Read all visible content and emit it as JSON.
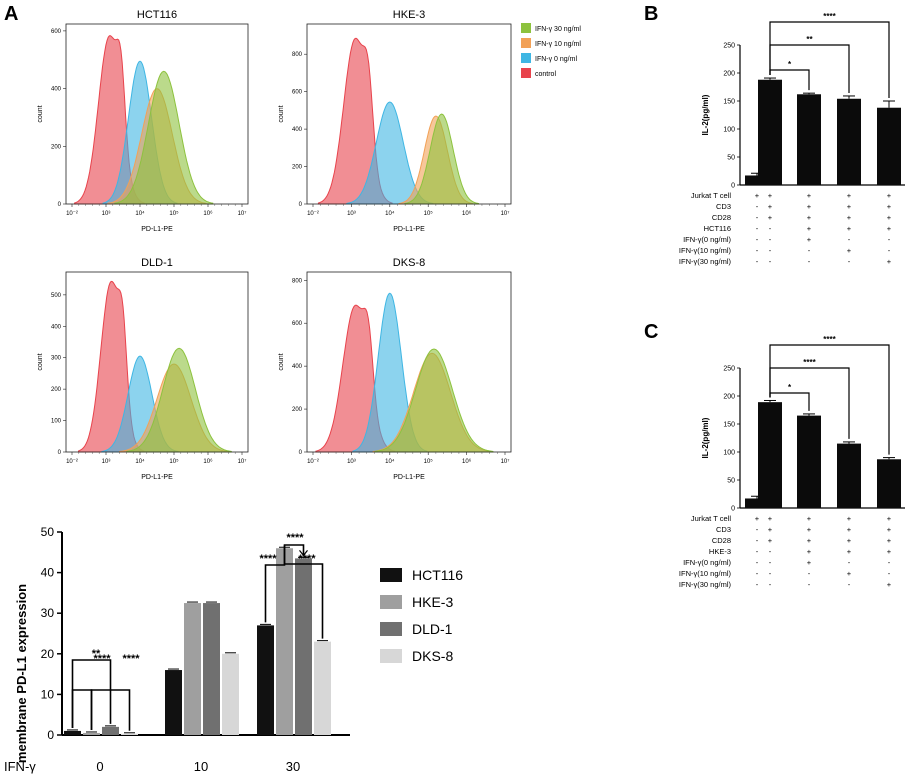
{
  "panel_letters": {
    "a": "A",
    "b": "B",
    "c": "C"
  },
  "colors": {
    "control": "#e8434c",
    "ifn0": "#3fb6e3",
    "ifn10": "#f2a157",
    "ifn30": "#8dc23e",
    "bar_black": "#0b0b0b",
    "hct116": "#111111",
    "hke3": "#9f9f9f",
    "dld1": "#707070",
    "dks8": "#d7d7d7"
  },
  "histogram_legend": [
    {
      "label": "IFN-γ 30 ng/ml",
      "color": "#8dc23e"
    },
    {
      "label": "IFN-γ 10 ng/ml",
      "color": "#f2a157"
    },
    {
      "label": "IFN-γ 0 ng/ml",
      "color": "#3fb6e3"
    },
    {
      "label": "control",
      "color": "#e8434c"
    }
  ],
  "chart_data": [
    {
      "id": "histograms",
      "type": "area",
      "xlabel": "PD-L1-PE",
      "ylabel": "count",
      "x_ticks": [
        "10⁻²",
        "10³",
        "10⁴",
        "10⁵",
        "10⁶",
        "10⁷"
      ],
      "panels": [
        {
          "title": "HCT116",
          "y_ticks": [
            0,
            200,
            400,
            600
          ],
          "ylim": [
            0,
            610
          ],
          "series": [
            {
              "name": "control",
              "peak_decade": 1.1,
              "peak_count": 580,
              "width": 0.32
            },
            {
              "name": "IFN-γ 0 ng/ml",
              "peak_decade": 2.0,
              "peak_count": 495,
              "width": 0.34
            },
            {
              "name": "IFN-γ 10 ng/ml",
              "peak_decade": 2.5,
              "peak_count": 400,
              "width": 0.45
            },
            {
              "name": "IFN-γ 30 ng/ml",
              "peak_decade": 2.7,
              "peak_count": 460,
              "width": 0.45
            }
          ]
        },
        {
          "title": "HKE-3",
          "y_ticks": [
            0,
            200,
            400,
            600,
            800
          ],
          "ylim": [
            0,
            940
          ],
          "series": [
            {
              "name": "control",
              "peak_decade": 1.1,
              "peak_count": 880,
              "width": 0.3
            },
            {
              "name": "IFN-γ 0 ng/ml",
              "peak_decade": 2.0,
              "peak_count": 545,
              "width": 0.35
            },
            {
              "name": "IFN-γ 10 ng/ml",
              "peak_decade": 3.2,
              "peak_count": 470,
              "width": 0.3
            },
            {
              "name": "IFN-γ 30 ng/ml",
              "peak_decade": 3.35,
              "peak_count": 480,
              "width": 0.3
            }
          ]
        },
        {
          "title": "DLD-1",
          "y_ticks": [
            0,
            100,
            200,
            300,
            400,
            500
          ],
          "ylim": [
            0,
            560
          ],
          "series": [
            {
              "name": "control",
              "peak_decade": 1.15,
              "peak_count": 540,
              "width": 0.3
            },
            {
              "name": "IFN-γ 0 ng/ml",
              "peak_decade": 2.0,
              "peak_count": 305,
              "width": 0.35
            },
            {
              "name": "IFN-γ 10 ng/ml",
              "peak_decade": 3.0,
              "peak_count": 280,
              "width": 0.5
            },
            {
              "name": "IFN-γ 30 ng/ml",
              "peak_decade": 3.15,
              "peak_count": 330,
              "width": 0.48
            }
          ]
        },
        {
          "title": "DKS-8",
          "y_ticks": [
            0,
            200,
            400,
            600,
            800
          ],
          "ylim": [
            0,
            820
          ],
          "series": [
            {
              "name": "control",
              "peak_decade": 1.1,
              "peak_count": 680,
              "width": 0.32
            },
            {
              "name": "IFN-γ 0 ng/ml",
              "peak_decade": 2.0,
              "peak_count": 740,
              "width": 0.3
            },
            {
              "name": "IFN-γ 10 ng/ml",
              "peak_decade": 3.1,
              "peak_count": 460,
              "width": 0.48
            },
            {
              "name": "IFN-γ 30 ng/ml",
              "peak_decade": 3.15,
              "peak_count": 480,
              "width": 0.48
            }
          ]
        }
      ]
    },
    {
      "id": "membrane",
      "type": "bar",
      "ylabel": "membrane PD-L1 expression",
      "xlabel": "IFN-γ",
      "categories": [
        "0",
        "10",
        "30"
      ],
      "ylim": [
        0,
        50
      ],
      "y_ticks": [
        0,
        10,
        20,
        30,
        40,
        50
      ],
      "series": [
        {
          "name": "HCT116",
          "values": [
            1,
            16,
            27
          ]
        },
        {
          "name": "HKE-3",
          "values": [
            0.5,
            32.5,
            46
          ]
        },
        {
          "name": "DLD-1",
          "values": [
            2,
            32.5,
            43.5
          ]
        },
        {
          "name": "DKS-8",
          "values": [
            0.3,
            20,
            23
          ]
        }
      ],
      "significance": [
        {
          "group": 0,
          "from": 0,
          "to": 2,
          "label": "**"
        },
        {
          "group": 0,
          "from": 0,
          "to": 1,
          "label": "****"
        },
        {
          "group": 0,
          "from": 1,
          "to": 3,
          "label": "****"
        },
        {
          "group": 2,
          "from": 0,
          "to": 1,
          "label": "****"
        },
        {
          "group": 2,
          "from": 1,
          "to": 2,
          "label": "****"
        },
        {
          "group": 2,
          "from": 1,
          "to": 3,
          "label": "****"
        }
      ]
    },
    {
      "id": "B",
      "type": "bar",
      "ylabel": "IL-2(pg/ml)",
      "ylim": [
        0,
        250
      ],
      "y_ticks": [
        0,
        50,
        100,
        150,
        200,
        250
      ],
      "values": [
        17,
        188,
        162,
        154,
        138
      ],
      "errors": [
        4,
        3,
        2,
        5,
        12
      ],
      "significance": [
        {
          "from": 1,
          "to": 2,
          "label": "*"
        },
        {
          "from": 1,
          "to": 3,
          "label": "**"
        },
        {
          "from": 1,
          "to": 4,
          "label": "****"
        }
      ],
      "table": [
        {
          "label": "Jurkat T cell",
          "cells": [
            "+",
            "+",
            "+",
            "+",
            "+"
          ]
        },
        {
          "label": "CD3",
          "cells": [
            "-",
            "+",
            "+",
            "+",
            "+"
          ]
        },
        {
          "label": "CD28",
          "cells": [
            "-",
            "+",
            "+",
            "+",
            "+"
          ]
        },
        {
          "label": "HCT116",
          "cells": [
            "-",
            "-",
            "+",
            "+",
            "+"
          ]
        },
        {
          "label": "IFN-γ(0 ng/ml)",
          "cells": [
            "-",
            "-",
            "+",
            "-",
            "-"
          ]
        },
        {
          "label": "IFN-γ(10 ng/ml)",
          "cells": [
            "-",
            "-",
            "-",
            "+",
            "-"
          ]
        },
        {
          "label": "IFN-γ(30 ng/ml)",
          "cells": [
            "-",
            "-",
            "-",
            "-",
            "+"
          ]
        }
      ]
    },
    {
      "id": "C",
      "type": "bar",
      "ylabel": "IL-2(pg/ml)",
      "ylim": [
        0,
        250
      ],
      "y_ticks": [
        0,
        50,
        100,
        150,
        200,
        250
      ],
      "values": [
        17,
        189,
        165,
        115,
        87
      ],
      "errors": [
        4,
        3,
        3,
        3,
        3
      ],
      "significance": [
        {
          "from": 1,
          "to": 2,
          "label": "*"
        },
        {
          "from": 1,
          "to": 3,
          "label": "****"
        },
        {
          "from": 1,
          "to": 4,
          "label": "****"
        }
      ],
      "table": [
        {
          "label": "Jurkat T cell",
          "cells": [
            "+",
            "+",
            "+",
            "+",
            "+"
          ]
        },
        {
          "label": "CD3",
          "cells": [
            "-",
            "+",
            "+",
            "+",
            "+"
          ]
        },
        {
          "label": "CD28",
          "cells": [
            "-",
            "+",
            "+",
            "+",
            "+"
          ]
        },
        {
          "label": "HKE-3",
          "cells": [
            "-",
            "-",
            "+",
            "+",
            "+"
          ]
        },
        {
          "label": "IFN-γ(0 ng/ml)",
          "cells": [
            "-",
            "-",
            "+",
            "-",
            "-"
          ]
        },
        {
          "label": "IFN-γ(10 ng/ml)",
          "cells": [
            "-",
            "-",
            "-",
            "+",
            "-"
          ]
        },
        {
          "label": "IFN-γ(30 ng/ml)",
          "cells": [
            "-",
            "-",
            "-",
            "-",
            "+"
          ]
        }
      ]
    }
  ]
}
